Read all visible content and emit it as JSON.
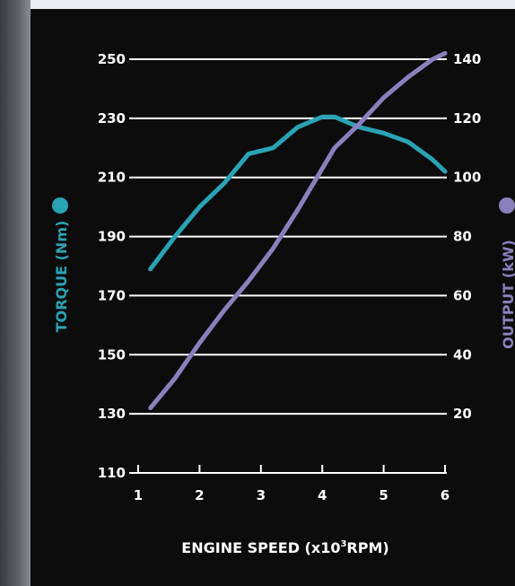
{
  "chart_data": {
    "type": "line",
    "xlabel_main": "ENGINE SPEED (x10",
    "xlabel_sup": "3",
    "xlabel_tail": "RPM)",
    "ylabel_left": "TORQUE (Nm)",
    "ylabel_right": "OUTPUT (kW)",
    "x_ticks": [
      "1",
      "2",
      "3",
      "4",
      "5",
      "6"
    ],
    "xlim": [
      1,
      6
    ],
    "y_left_ticks": [
      "110",
      "130",
      "150",
      "170",
      "190",
      "210",
      "230",
      "250"
    ],
    "y_left_lim": [
      110,
      250
    ],
    "y_right_ticks": [
      "20",
      "40",
      "60",
      "80",
      "100",
      "120",
      "140"
    ],
    "y_right_lim": [
      0,
      140
    ],
    "grid": "horizontal",
    "series": [
      {
        "axis": "left",
        "color": "#2aa3b5",
        "x": [
          1.2,
          1.6,
          2.0,
          2.4,
          2.8,
          3.2,
          3.6,
          4.0,
          4.2,
          4.6,
          5.0,
          5.4,
          5.8,
          6.0
        ],
        "y": [
          179,
          190,
          200,
          208,
          218,
          220,
          227,
          230.5,
          230.5,
          227,
          225,
          222,
          216,
          212
        ]
      },
      {
        "axis": "right",
        "color": "#8b7fbe",
        "x": [
          1.2,
          1.6,
          2.0,
          2.4,
          2.8,
          3.2,
          3.6,
          4.0,
          4.2,
          4.6,
          5.0,
          5.4,
          5.8,
          6.0
        ],
        "y": [
          22,
          32,
          44,
          55,
          65,
          76,
          89,
          103,
          110,
          118,
          127,
          134,
          140,
          142
        ]
      }
    ]
  },
  "colors": {
    "torque": "#2aa3b5",
    "output": "#8b7fbe",
    "axis": "#ffffff",
    "background": "#0c0c0c"
  }
}
